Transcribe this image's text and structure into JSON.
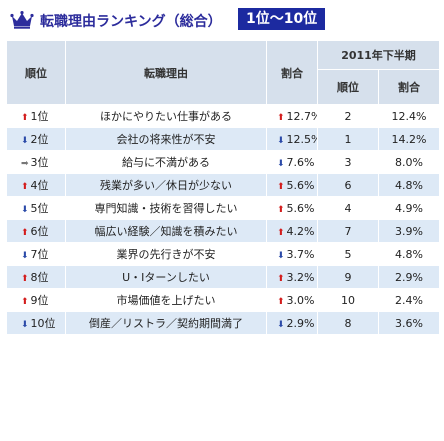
{
  "header": {
    "title": "転職理由ランキング（総合）",
    "badge": "1位〜10位"
  },
  "columns": {
    "rank": "順位",
    "reason": "転職理由",
    "rate": "割合",
    "prev_group": "2011年下半期",
    "prev_rank": "順位",
    "prev_rate": "割合"
  },
  "colors": {
    "up": "#d31c1c",
    "down": "#2b4aa8",
    "same": "#777777",
    "header_bg": "#d6e0ec",
    "row_alt": "#dde9f6"
  },
  "rows": [
    {
      "rank": "1位",
      "rank_trend": "up",
      "reason": "ほかにやりたい仕事がある",
      "rate": "12.7%",
      "rate_trend": "up",
      "prev_rank": "2",
      "prev_rate": "12.4%"
    },
    {
      "rank": "2位",
      "rank_trend": "down",
      "reason": "会社の将来性が不安",
      "rate": "12.5%",
      "rate_trend": "down",
      "prev_rank": "1",
      "prev_rate": "14.2%"
    },
    {
      "rank": "3位",
      "rank_trend": "same",
      "reason": "給与に不満がある",
      "rate": "7.6%",
      "rate_trend": "down",
      "prev_rank": "3",
      "prev_rate": "8.0%"
    },
    {
      "rank": "4位",
      "rank_trend": "up",
      "reason": "残業が多い／休日が少ない",
      "rate": "5.6%",
      "rate_trend": "up",
      "prev_rank": "6",
      "prev_rate": "4.8%"
    },
    {
      "rank": "5位",
      "rank_trend": "down",
      "reason": "専門知識・技術を習得したい",
      "rate": "5.6%",
      "rate_trend": "up",
      "prev_rank": "4",
      "prev_rate": "4.9%"
    },
    {
      "rank": "6位",
      "rank_trend": "up",
      "reason": "幅広い経験／知識を積みたい",
      "rate": "4.2%",
      "rate_trend": "up",
      "prev_rank": "7",
      "prev_rate": "3.9%"
    },
    {
      "rank": "7位",
      "rank_trend": "down",
      "reason": "業界の先行きが不安",
      "rate": "3.7%",
      "rate_trend": "down",
      "prev_rank": "5",
      "prev_rate": "4.8%"
    },
    {
      "rank": "8位",
      "rank_trend": "up",
      "reason": "U・Iターンしたい",
      "rate": "3.2%",
      "rate_trend": "up",
      "prev_rank": "9",
      "prev_rate": "2.9%"
    },
    {
      "rank": "9位",
      "rank_trend": "up",
      "reason": "市場価値を上げたい",
      "rate": "3.0%",
      "rate_trend": "up",
      "prev_rank": "10",
      "prev_rate": "2.4%"
    },
    {
      "rank": "10位",
      "rank_trend": "down",
      "reason": "倒産／リストラ／契約期間満了",
      "rate": "2.9%",
      "rate_trend": "down",
      "prev_rank": "8",
      "prev_rate": "3.6%"
    }
  ]
}
